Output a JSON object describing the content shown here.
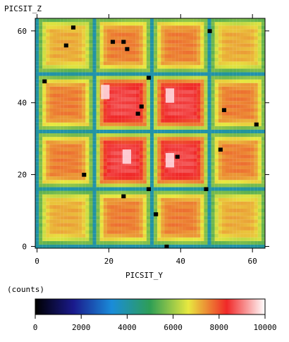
{
  "chart_data": {
    "type": "heatmap",
    "title": "",
    "xlabel": "PICSIT_Y",
    "ylabel": "PICSIT_Z",
    "xlim": [
      0,
      63
    ],
    "ylim": [
      0,
      63
    ],
    "x_ticks": [
      0,
      20,
      40,
      60
    ],
    "y_ticks": [
      0,
      20,
      40,
      60
    ],
    "grid": false,
    "module_grid": {
      "columns": 4,
      "rows": 4,
      "pixels_per_module": 16,
      "module_centers_y": [
        8,
        24,
        40,
        56
      ],
      "module_centers_z": [
        8,
        24,
        40,
        56
      ],
      "edge_level_counts": 4000,
      "center_level_counts": {
        "outer_row_or_col": 7600,
        "corner": 7200,
        "inner": 8600
      }
    },
    "hot_pixels": [
      {
        "y": 19,
        "z": 43
      },
      {
        "y": 37,
        "z": 42
      },
      {
        "y": 25,
        "z": 25
      },
      {
        "y": 37,
        "z": 24
      }
    ],
    "dead_pixels": [
      {
        "y": 10,
        "z": 61
      },
      {
        "y": 8,
        "z": 56
      },
      {
        "y": 21,
        "z": 57
      },
      {
        "y": 24,
        "z": 57
      },
      {
        "y": 25,
        "z": 55
      },
      {
        "y": 2,
        "z": 46
      },
      {
        "y": 29,
        "z": 39
      },
      {
        "y": 28,
        "z": 37
      },
      {
        "y": 52,
        "z": 38
      },
      {
        "y": 61,
        "z": 34
      },
      {
        "y": 39,
        "z": 25
      },
      {
        "y": 47,
        "z": 16
      },
      {
        "y": 24,
        "z": 14
      },
      {
        "y": 31,
        "z": 16
      },
      {
        "y": 33,
        "z": 9
      },
      {
        "y": 36,
        "z": 0
      },
      {
        "y": 51,
        "z": 27
      },
      {
        "y": 48,
        "z": 60
      },
      {
        "y": 31,
        "z": 47
      },
      {
        "y": 13,
        "z": 20
      }
    ],
    "colorbar": {
      "label": "(counts)",
      "min": 0,
      "max": 10000,
      "ticks": [
        0,
        2000,
        4000,
        6000,
        8000,
        10000
      ],
      "colors": [
        "#000000",
        "#1a1a8c",
        "#1a8cd9",
        "#2e9e55",
        "#e8e840",
        "#f02828",
        "#ffffff"
      ]
    }
  }
}
